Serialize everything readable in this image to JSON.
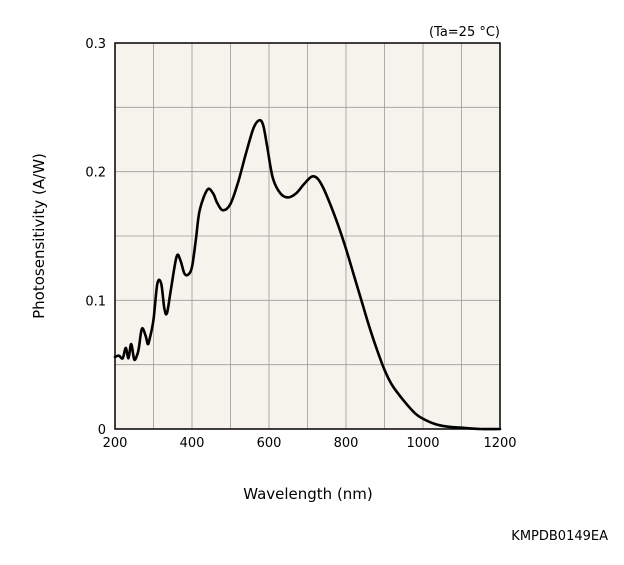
{
  "chart_data": {
    "type": "line",
    "title": "",
    "annotation": "(Ta=25 °C)",
    "xlabel": "Wavelength (nm)",
    "ylabel": "Photosensitivity (A/W)",
    "xlim": [
      200,
      1200
    ],
    "ylim": [
      0,
      0.3
    ],
    "xticks": [
      200,
      400,
      600,
      800,
      1000,
      1200
    ],
    "yticks": [
      0,
      0.1,
      0.2,
      0.3
    ],
    "ytick_labels": [
      "0",
      "0.1",
      "0.2",
      "0.3"
    ],
    "grid": true,
    "colors": {
      "background": "#f5f3ec",
      "grid": "#9a9a9a",
      "line": "#000000"
    },
    "series": [
      {
        "x": [
          200,
          210,
          220,
          228,
          235,
          242,
          250,
          258,
          262,
          270,
          280,
          285,
          290,
          300,
          310,
          320,
          328,
          335,
          345,
          360,
          370,
          380,
          390,
          400,
          410,
          420,
          440,
          455,
          465,
          480,
          500,
          520,
          540,
          560,
          575,
          585,
          595,
          610,
          630,
          650,
          670,
          690,
          710,
          725,
          740,
          760,
          780,
          800,
          820,
          840,
          860,
          880,
          900,
          920,
          950,
          980,
          1000,
          1030,
          1060,
          1100,
          1150,
          1200
        ],
        "y": [
          0.056,
          0.057,
          0.055,
          0.063,
          0.055,
          0.066,
          0.054,
          0.058,
          0.063,
          0.078,
          0.072,
          0.066,
          0.07,
          0.085,
          0.113,
          0.113,
          0.094,
          0.09,
          0.108,
          0.134,
          0.131,
          0.121,
          0.12,
          0.126,
          0.147,
          0.17,
          0.186,
          0.183,
          0.176,
          0.17,
          0.175,
          0.192,
          0.214,
          0.234,
          0.24,
          0.236,
          0.22,
          0.195,
          0.183,
          0.18,
          0.183,
          0.19,
          0.196,
          0.195,
          0.188,
          0.174,
          0.158,
          0.14,
          0.12,
          0.1,
          0.08,
          0.062,
          0.046,
          0.034,
          0.022,
          0.012,
          0.008,
          0.004,
          0.002,
          0.001,
          0.0,
          0.0
        ]
      }
    ]
  },
  "figure_code": "KMPDB0149EA"
}
